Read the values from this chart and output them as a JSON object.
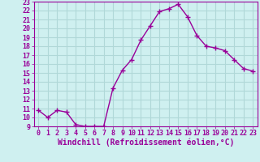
{
  "x": [
    0,
    1,
    2,
    3,
    4,
    5,
    6,
    7,
    8,
    9,
    10,
    11,
    12,
    13,
    14,
    15,
    16,
    17,
    18,
    19,
    20,
    21,
    22,
    23
  ],
  "y": [
    10.8,
    10.0,
    10.8,
    10.6,
    9.2,
    9.0,
    9.0,
    9.0,
    13.3,
    15.3,
    16.5,
    18.7,
    20.3,
    21.9,
    22.2,
    22.7,
    21.3,
    19.2,
    18.0,
    17.8,
    17.5,
    16.5,
    15.5,
    15.2
  ],
  "line_color": "#990099",
  "marker": "+",
  "marker_size": 4,
  "xlabel": "Windchill (Refroidissement éolien,°C)",
  "ylim": [
    9,
    23
  ],
  "xlim": [
    -0.5,
    23.5
  ],
  "yticks": [
    9,
    10,
    11,
    12,
    13,
    14,
    15,
    16,
    17,
    18,
    19,
    20,
    21,
    22,
    23
  ],
  "xticks": [
    0,
    1,
    2,
    3,
    4,
    5,
    6,
    7,
    8,
    9,
    10,
    11,
    12,
    13,
    14,
    15,
    16,
    17,
    18,
    19,
    20,
    21,
    22,
    23
  ],
  "bg_color": "#cff0f0",
  "grid_color": "#b0d8d8",
  "tick_label_color": "#990099",
  "xlabel_color": "#990099",
  "xlabel_fontsize": 7,
  "tick_fontsize": 6,
  "linewidth": 1.0,
  "markeredgewidth": 1.0
}
